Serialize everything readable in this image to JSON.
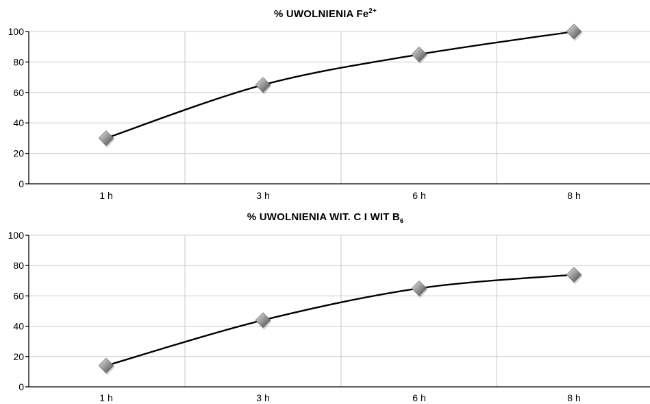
{
  "chart_data": [
    {
      "type": "line",
      "title": "% UWOLNIENIA Fe",
      "title_sup": "2+",
      "categories": [
        "1 h",
        "3 h",
        "6 h",
        "8 h"
      ],
      "values": [
        30,
        65,
        85,
        100
      ],
      "ylim": [
        0,
        100
      ],
      "yticks": [
        "0",
        "20",
        "40",
        "60",
        "80",
        "100"
      ],
      "grid": true,
      "marker": "diamond"
    },
    {
      "type": "line",
      "title": "% UWOLNIENIA WIT. C I WIT B",
      "title_sub": "6",
      "categories": [
        "1 h",
        "3 h",
        "6 h",
        "8 h"
      ],
      "values": [
        14,
        44,
        65,
        74
      ],
      "ylim": [
        0,
        100
      ],
      "yticks": [
        "0",
        "20",
        "40",
        "60",
        "80",
        "100"
      ],
      "grid": true,
      "marker": "diamond"
    }
  ],
  "colors": {
    "line": "#000000",
    "grid": "#c8c8c8",
    "marker_light": "#d9d9d9",
    "marker_dark": "#4a4a4a"
  }
}
